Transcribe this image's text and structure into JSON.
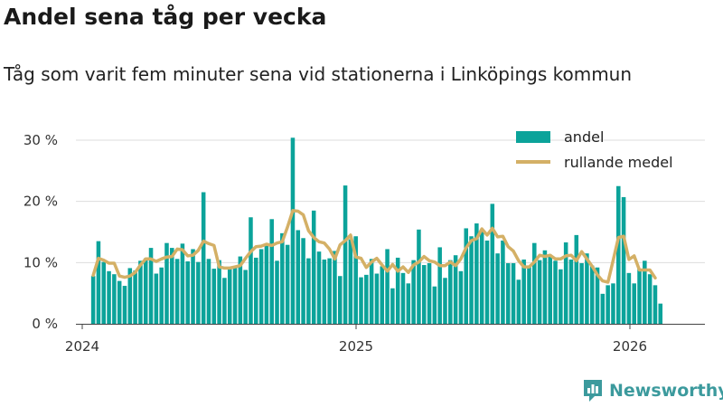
{
  "title": "Andel sena tåg per vecka",
  "subtitle": "Tåg som varit fem minuter sena vid stationerna i Linköpings kommun",
  "brand": "Newsworthy",
  "colors": {
    "bar": "#0ba39a",
    "line": "#d4b066",
    "grid": "#dddddd",
    "brand": "#3c9a9d"
  },
  "chart_data": {
    "type": "bar",
    "title": "Andel sena tåg per vecka",
    "xlabel": "",
    "ylabel": "",
    "ylim": [
      0,
      30
    ],
    "yticks": [
      0,
      10,
      20,
      30
    ],
    "ytick_labels": [
      "0 %",
      "10 %",
      "20 %",
      "30 %"
    ],
    "xticks": [
      2024,
      2025,
      2026
    ],
    "xtick_labels": [
      "2024",
      "2025",
      "2026"
    ],
    "x_range": [
      2023.98,
      2026.28
    ],
    "grid": true,
    "legend": "top-right",
    "series": [
      {
        "name": "andel",
        "type": "bar",
        "start": 2024.04,
        "step": 0.01918,
        "values": [
          7.8,
          13.5,
          10.1,
          8.6,
          8.1,
          7.0,
          6.2,
          9.1,
          8.7,
          10.3,
          10.7,
          12.4,
          8.2,
          9.2,
          13.2,
          12.4,
          10.6,
          13.1,
          10.2,
          12.2,
          10.1,
          21.5,
          10.6,
          9.0,
          10.4,
          7.5,
          9.1,
          9.3,
          11.0,
          8.8,
          17.4,
          10.8,
          12.2,
          13.1,
          17.1,
          10.3,
          14.8,
          12.9,
          30.4,
          15.3,
          14.0,
          10.7,
          18.5,
          11.8,
          10.5,
          10.7,
          11.9,
          7.8,
          22.6,
          13.8,
          14.3,
          7.6,
          8.0,
          10.6,
          8.2,
          9.4,
          12.2,
          5.8,
          10.8,
          8.3,
          6.6,
          10.4,
          15.4,
          9.6,
          9.9,
          6.1,
          12.5,
          7.5,
          10.4,
          11.2,
          8.6,
          15.6,
          14.3,
          16.4,
          15.2,
          13.6,
          19.6,
          11.5,
          13.6,
          9.9,
          9.9,
          7.2,
          10.5,
          9.4,
          13.2,
          10.4,
          12.0,
          11.3,
          10.3,
          8.9,
          13.3,
          10.5,
          14.5,
          9.9,
          11.5,
          9.5,
          9.2,
          4.9,
          6.3,
          6.6,
          22.5,
          20.7,
          8.3,
          6.6,
          9.0,
          10.3,
          8.1,
          6.3,
          3.3
        ]
      },
      {
        "name": "rullande medel",
        "type": "line",
        "start": 2024.04,
        "step": 0.01918,
        "values": [
          7.9,
          10.7,
          10.4,
          9.9,
          9.9,
          7.8,
          7.6,
          7.8,
          8.4,
          9.6,
          10.6,
          10.6,
          10.2,
          10.6,
          10.9,
          11.0,
          12.2,
          12.1,
          11.1,
          11.2,
          12.0,
          13.5,
          13.1,
          12.8,
          9.3,
          9.1,
          9.1,
          9.3,
          9.5,
          10.7,
          11.8,
          12.6,
          12.7,
          13.0,
          12.8,
          13.2,
          13.4,
          15.8,
          18.5,
          18.4,
          17.8,
          15.2,
          14.1,
          13.4,
          13.2,
          12.2,
          10.6,
          12.9,
          13.6,
          14.5,
          10.9,
          10.7,
          9.2,
          10.1,
          10.7,
          9.6,
          8.6,
          9.7,
          8.6,
          9.3,
          8.4,
          9.6,
          10.1,
          11.0,
          10.3,
          10.1,
          9.5,
          9.5,
          10.1,
          9.5,
          10.6,
          12.4,
          13.6,
          13.9,
          15.5,
          14.5,
          15.6,
          14.2,
          14.3,
          12.6,
          11.9,
          10.3,
          9.3,
          9.3,
          10.1,
          11.2,
          11.0,
          11.2,
          10.6,
          10.6,
          11.1,
          11.2,
          10.3,
          11.8,
          10.6,
          9.4,
          8.0,
          7.0,
          6.8,
          10.4,
          14.1,
          14.3,
          10.5,
          11.1,
          8.8,
          8.8,
          8.8,
          7.5
        ]
      }
    ]
  }
}
